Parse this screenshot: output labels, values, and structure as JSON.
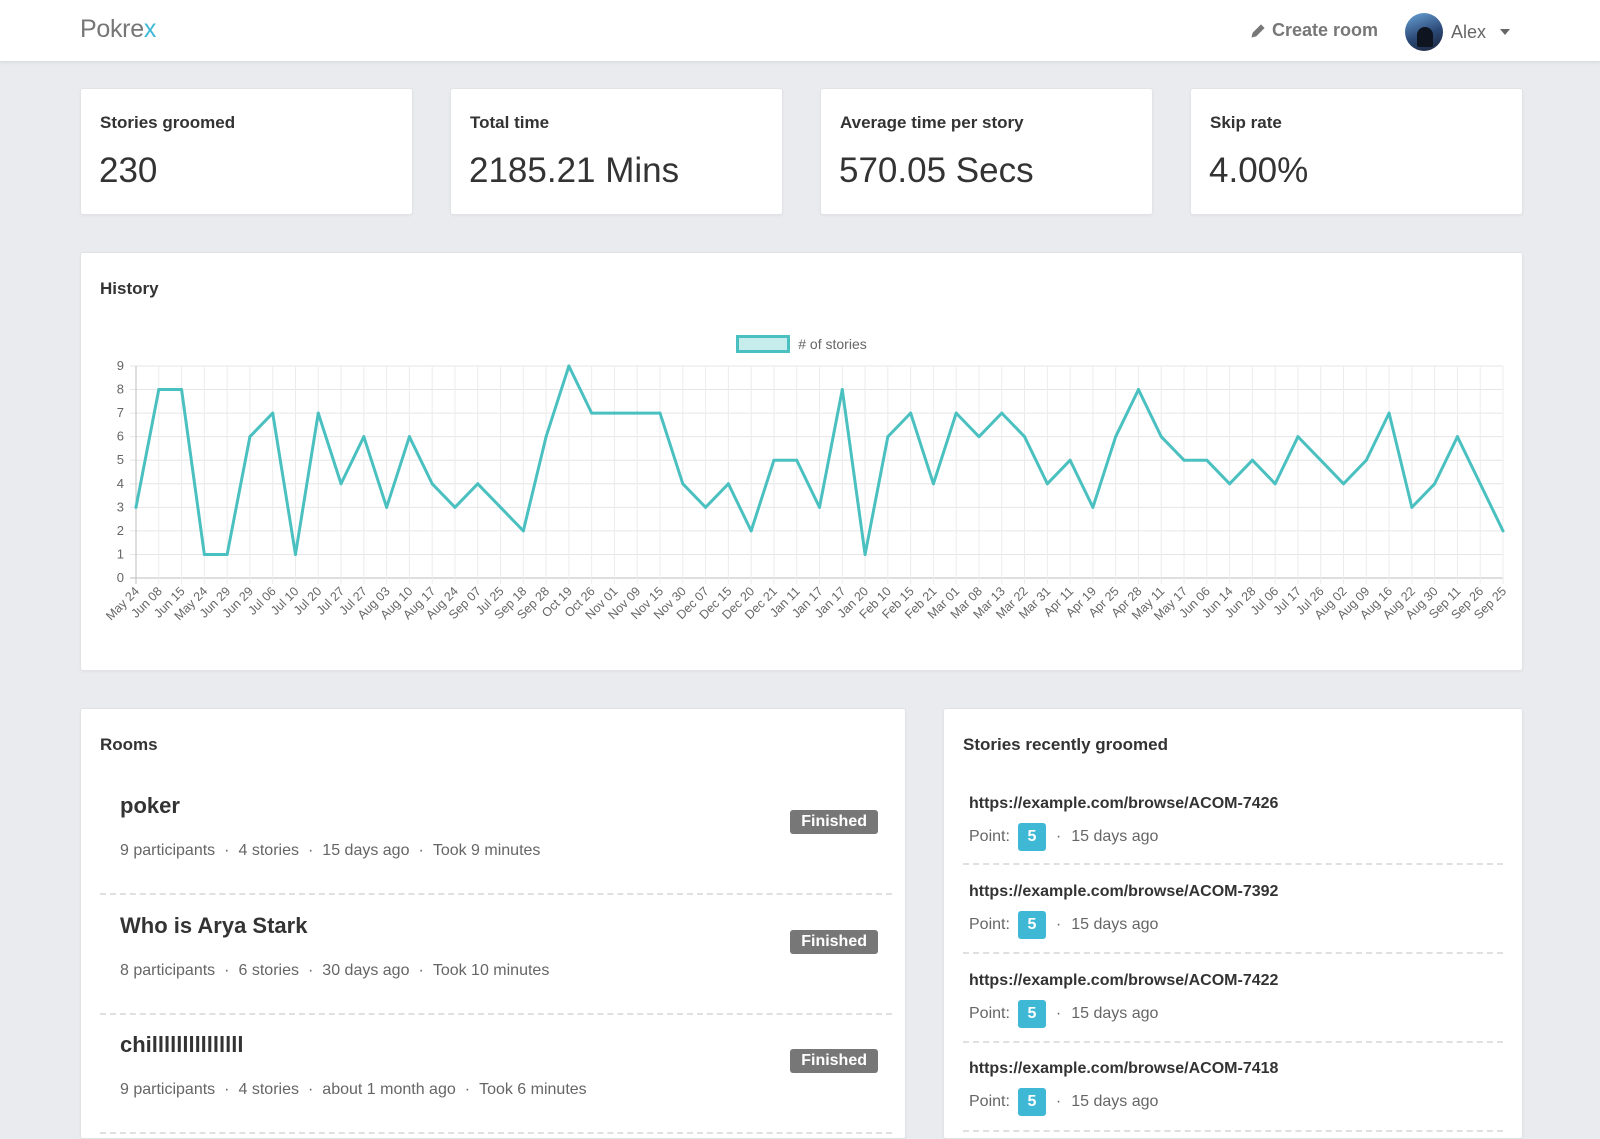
{
  "nav": {
    "brand_main": "Pokre",
    "brand_accent": "x",
    "create_room": "Create room",
    "user_name": "Alex"
  },
  "stats": [
    {
      "label": "Stories groomed",
      "value": "230"
    },
    {
      "label": "Total time",
      "value": "2185.21 Mins"
    },
    {
      "label": "Average time per story",
      "value": "570.05 Secs"
    },
    {
      "label": "Skip rate",
      "value": "4.00%"
    }
  ],
  "history": {
    "title": "History"
  },
  "chart_data": {
    "type": "line",
    "title": "",
    "xlabel": "",
    "ylabel": "",
    "ylim": [
      0,
      9
    ],
    "yticks": [
      "0",
      "1",
      "2",
      "3",
      "4",
      "5",
      "6",
      "7",
      "8",
      "9"
    ],
    "grid": true,
    "legend_position": "top-center",
    "categories": [
      "May 24",
      "Jun 08",
      "Jun 15",
      "May 24",
      "Jun 29",
      "Jun 29",
      "Jul 06",
      "Jul 10",
      "Jul 20",
      "Jul 27",
      "Jul 27",
      "Aug 03",
      "Aug 10",
      "Aug 17",
      "Aug 24",
      "Sep 07",
      "Jul 25",
      "Sep 18",
      "Sep 28",
      "Oct 19",
      "Oct 26",
      "Nov 01",
      "Nov 09",
      "Nov 15",
      "Nov 30",
      "Dec 07",
      "Dec 15",
      "Dec 20",
      "Dec 21",
      "Jan 11",
      "Jan 17",
      "Jan 17",
      "Jan 20",
      "Feb 10",
      "Feb 15",
      "Feb 21",
      "Mar 01",
      "Mar 08",
      "Mar 13",
      "Mar 22",
      "Mar 31",
      "Apr 11",
      "Apr 19",
      "Apr 25",
      "Apr 28",
      "May 11",
      "May 17",
      "Jun 06",
      "Jun 14",
      "Jun 28",
      "Jul 06",
      "Jul 17",
      "Jul 26",
      "Aug 02",
      "Aug 09",
      "Aug 16",
      "Aug 22",
      "Aug 30",
      "Sep 11",
      "Sep 26",
      "Sep 25"
    ],
    "series": [
      {
        "name": "# of stories",
        "color": "#4bc0c0",
        "values": [
          3,
          8,
          8,
          1,
          1,
          6,
          7,
          1,
          7,
          4,
          6,
          3,
          6,
          4,
          3,
          4,
          3,
          2,
          6,
          9,
          7,
          7,
          7,
          7,
          4,
          3,
          4,
          2,
          5,
          5,
          3,
          8,
          1,
          6,
          7,
          4,
          7,
          6,
          7,
          6,
          4,
          5,
          3,
          6,
          8,
          6,
          5,
          5,
          4,
          5,
          4,
          6,
          5,
          4,
          5,
          7,
          3,
          4,
          6,
          4,
          2
        ]
      }
    ]
  },
  "rooms": {
    "title": "Rooms",
    "items": [
      {
        "name": "poker",
        "participants": "9 participants",
        "stories": "4 stories",
        "when": "15 days ago",
        "took": "Took 9 minutes",
        "status": "Finished"
      },
      {
        "name": "Who is Arya Stark",
        "participants": "8 participants",
        "stories": "6 stories",
        "when": "30 days ago",
        "took": "Took 10 minutes",
        "status": "Finished"
      },
      {
        "name": "chilllllllllllllll",
        "participants": "9 participants",
        "stories": "4 stories",
        "when": "about 1 month ago",
        "took": "Took 6 minutes",
        "status": "Finished"
      }
    ]
  },
  "stories": {
    "title": "Stories recently groomed",
    "point_label": "Point:",
    "items": [
      {
        "url": "https://example.com/browse/ACOM-7426",
        "point": "5",
        "when": "15 days ago"
      },
      {
        "url": "https://example.com/browse/ACOM-7392",
        "point": "5",
        "when": "15 days ago"
      },
      {
        "url": "https://example.com/browse/ACOM-7422",
        "point": "5",
        "when": "15 days ago"
      },
      {
        "url": "https://example.com/browse/ACOM-7418",
        "point": "5",
        "when": "15 days ago"
      }
    ]
  }
}
